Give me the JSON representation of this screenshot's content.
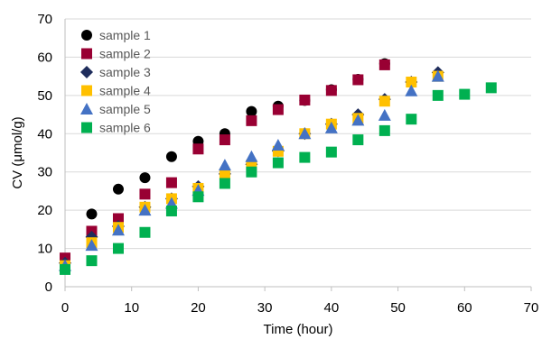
{
  "chart_data": {
    "type": "scatter",
    "xlabel": "Time (hour)",
    "ylabel": "CV (μmol/g)",
    "xlim": [
      0,
      70
    ],
    "ylim": [
      0,
      70
    ],
    "x_ticks": [
      "0",
      "10",
      "20",
      "30",
      "40",
      "50",
      "60",
      "70"
    ],
    "y_ticks": [
      "0",
      "10",
      "20",
      "30",
      "40",
      "50",
      "60",
      "70"
    ],
    "grid": "horizontal",
    "legend_position": "top-left",
    "series": [
      {
        "name": "sample 1",
        "marker": "circle",
        "color": "#000000",
        "x": [
          0,
          4,
          8,
          12,
          16,
          20,
          24,
          28,
          32,
          36,
          40,
          44,
          48
        ],
        "y": [
          6.5,
          19,
          25.5,
          28.5,
          34,
          38,
          40,
          45.8,
          47.2,
          48.7,
          51.5,
          54.2,
          58.3
        ]
      },
      {
        "name": "sample 2",
        "marker": "square",
        "color": "#990033",
        "x": [
          0,
          4,
          8,
          12,
          16,
          20,
          24,
          28,
          32,
          36,
          40,
          44,
          48
        ],
        "y": [
          7.5,
          14.5,
          17.8,
          24.2,
          27.2,
          36,
          38.4,
          43.4,
          46.3,
          48.8,
          51.3,
          54.1,
          58
        ]
      },
      {
        "name": "sample 3",
        "marker": "diamond",
        "color": "#1F2D5C",
        "x": [
          0,
          4,
          8,
          12,
          16,
          20,
          24,
          28,
          32,
          36,
          40,
          44,
          48,
          52,
          56
        ],
        "y": [
          6.2,
          13,
          15.8,
          20.8,
          23,
          26.2,
          29.5,
          32,
          35.5,
          40,
          42.5,
          45,
          49,
          53.5,
          56
        ]
      },
      {
        "name": "sample 4",
        "marker": "square",
        "color": "#FFC000",
        "x": [
          0,
          4,
          8,
          12,
          16,
          20,
          24,
          28,
          32,
          36,
          40,
          44,
          48,
          52,
          56
        ],
        "y": [
          5.5,
          11.5,
          15.5,
          20.8,
          23,
          25.7,
          29.5,
          31.8,
          35.4,
          40,
          42.5,
          44,
          48.5,
          53.5,
          55
        ]
      },
      {
        "name": "sample 5",
        "marker": "triangle",
        "color": "#4472C4",
        "x": [
          0,
          4,
          8,
          12,
          16,
          20,
          24,
          28,
          32,
          36,
          40,
          44,
          48,
          52,
          56
        ],
        "y": [
          5.5,
          10.8,
          14.8,
          20,
          21.8,
          25.2,
          31.8,
          34,
          37,
          40,
          41.5,
          43.5,
          44.8,
          51.2,
          55
        ]
      },
      {
        "name": "sample 6",
        "marker": "square",
        "color": "#00B050",
        "x": [
          0,
          4,
          8,
          12,
          16,
          20,
          24,
          28,
          32,
          36,
          40,
          44,
          48,
          52,
          56,
          60,
          64
        ],
        "y": [
          4.5,
          6.8,
          10,
          14.2,
          19.8,
          23.5,
          27,
          30,
          32.4,
          33.8,
          35.2,
          38.4,
          40.8,
          43.8,
          50,
          50.3,
          52
        ]
      }
    ]
  }
}
